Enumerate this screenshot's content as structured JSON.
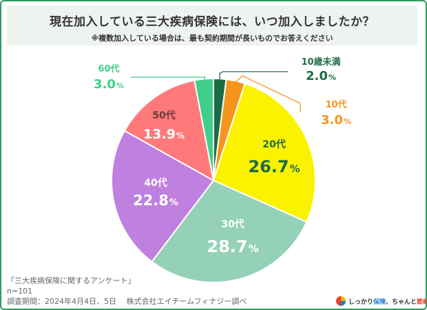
{
  "header": {
    "title": "現在加入している三大疾病保険には、いつ加入しましたか？",
    "subtitle": "※複数加入している場合は、最も契約期間が長いものでお答えください"
  },
  "chart_data": {
    "type": "pie",
    "unit": "%",
    "slices": [
      {
        "label": "10歳未満",
        "value": 2.0,
        "color": "#1e6b45"
      },
      {
        "label": "10代",
        "value": 3.0,
        "color": "#f5951d"
      },
      {
        "label": "20代",
        "value": 26.7,
        "color": "#fbf200"
      },
      {
        "label": "30代",
        "value": 28.7,
        "color": "#95d1b8"
      },
      {
        "label": "40代",
        "value": 22.8,
        "color": "#bf80e0"
      },
      {
        "label": "50代",
        "value": 13.9,
        "color": "#fe7a7a"
      },
      {
        "label": "60代",
        "value": 3.0,
        "color": "#3fcf8a"
      }
    ],
    "labels": {
      "10歳未満": {
        "name_color": "#1e6b45",
        "value_color": "#1e6b45"
      },
      "10代": {
        "name_color": "#f5951d",
        "value_color": "#f5951d"
      },
      "20代": {
        "name_color": "#1e6b45",
        "value_color": "#1e6b45"
      },
      "30代": {
        "name_color": "#ffffff",
        "value_color": "#ffffff"
      },
      "40代": {
        "name_color": "#ffffff",
        "value_color": "#ffffff"
      },
      "50代": {
        "name_color": "#6b3a3a",
        "value_color": "#ffffff"
      },
      "60代": {
        "name_color": "#3fcf8a",
        "value_color": "#3fcf8a"
      }
    }
  },
  "footer": {
    "survey_name": "「三大疾病保険に関するアンケート」",
    "sample": "n=101",
    "period": "調査期間：2024年4月4日、5日　 株式会社エイチームフィナジー調べ"
  },
  "logo": {
    "text_a": "しっかり",
    "text_b": "保険",
    "text_c": "、ちゃんと",
    "text_d": "節約",
    "text_e": "。"
  }
}
